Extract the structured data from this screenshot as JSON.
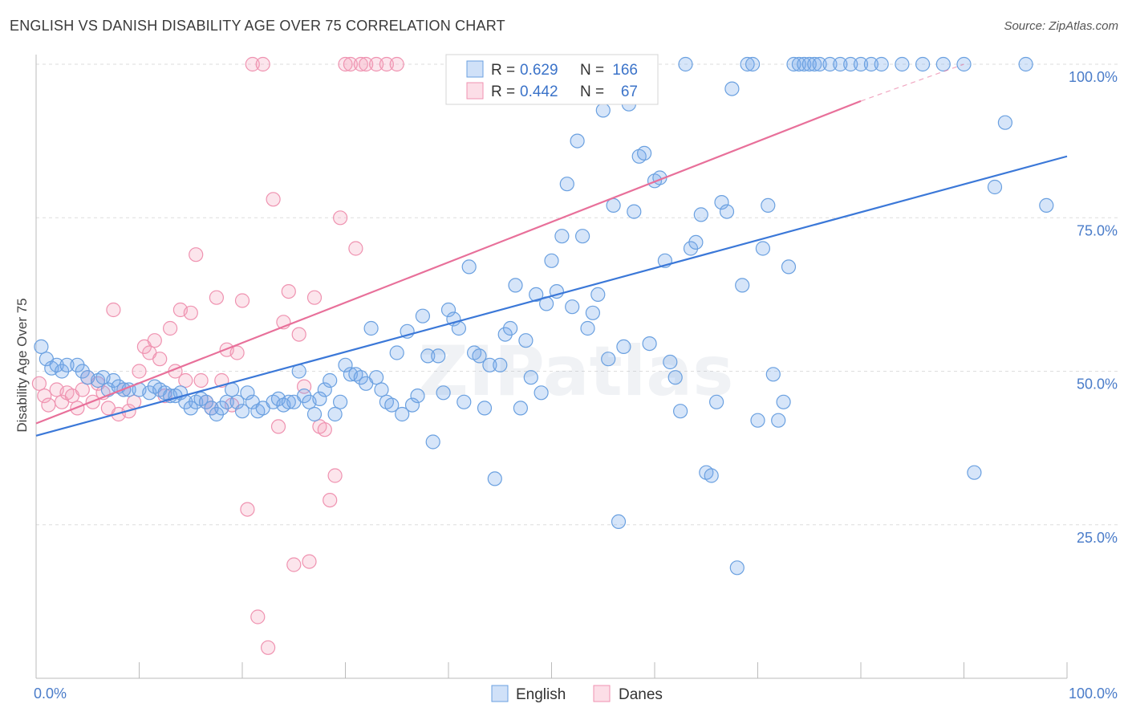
{
  "header": {
    "title": "ENGLISH VS DANISH DISABILITY AGE OVER 75 CORRELATION CHART",
    "source": "Source: ZipAtlas.com"
  },
  "watermark": "ZIPatlas",
  "chart_data": {
    "type": "scatter",
    "ylabel": "Disability Age Over 75",
    "xlim": [
      0,
      100
    ],
    "ylim": [
      0,
      100
    ],
    "x_tick_labels": [
      "0.0%",
      "100.0%"
    ],
    "y_ticks": [
      25,
      50,
      75,
      100
    ],
    "y_tick_labels": [
      "25.0%",
      "50.0%",
      "75.0%",
      "100.0%"
    ],
    "grid": true,
    "legend_top": {
      "rows": [
        {
          "r_label": "R =",
          "r": "0.629",
          "n_label": "N =",
          "n": "166",
          "color": "#6aa0e0"
        },
        {
          "r_label": "R =",
          "r": "0.442",
          "n_label": "N =",
          "n": "67",
          "color": "#ef92b0"
        }
      ]
    },
    "legend_bottom": [
      "English",
      "Danes"
    ],
    "series": [
      {
        "name": "English",
        "color": "#3b78d8",
        "trend": {
          "x": [
            0,
            100
          ],
          "y": [
            39.5,
            85.0
          ]
        },
        "points": [
          [
            0.5,
            54
          ],
          [
            1,
            52
          ],
          [
            1.5,
            50.5
          ],
          [
            2,
            51
          ],
          [
            2.5,
            50
          ],
          [
            3,
            51
          ],
          [
            4,
            51
          ],
          [
            4.5,
            50
          ],
          [
            5,
            49
          ],
          [
            6,
            48.5
          ],
          [
            6.5,
            49
          ],
          [
            7,
            47
          ],
          [
            7.5,
            48.5
          ],
          [
            8,
            47.5
          ],
          [
            8.5,
            47
          ],
          [
            9,
            47
          ],
          [
            10,
            47
          ],
          [
            11,
            46.5
          ],
          [
            11.5,
            47.5
          ],
          [
            12,
            47
          ],
          [
            12.5,
            46.5
          ],
          [
            13,
            46
          ],
          [
            13.5,
            46
          ],
          [
            14,
            46.5
          ],
          [
            14.5,
            45
          ],
          [
            15,
            44
          ],
          [
            15.5,
            45
          ],
          [
            16,
            45.5
          ],
          [
            16.5,
            45
          ],
          [
            17,
            44
          ],
          [
            17.5,
            43
          ],
          [
            18,
            44
          ],
          [
            18.5,
            45
          ],
          [
            19,
            47
          ],
          [
            19.5,
            45
          ],
          [
            20,
            43.5
          ],
          [
            20.5,
            46.5
          ],
          [
            21,
            45
          ],
          [
            21.5,
            43.5
          ],
          [
            22,
            44
          ],
          [
            23,
            45
          ],
          [
            23.5,
            45.5
          ],
          [
            24,
            44.5
          ],
          [
            24.5,
            45
          ],
          [
            25,
            45
          ],
          [
            25.5,
            50
          ],
          [
            26,
            46
          ],
          [
            26.5,
            45
          ],
          [
            27,
            43
          ],
          [
            27.5,
            45.5
          ],
          [
            28,
            47
          ],
          [
            28.5,
            48.5
          ],
          [
            29,
            43
          ],
          [
            29.5,
            45
          ],
          [
            30,
            51
          ],
          [
            30.5,
            49.5
          ],
          [
            31,
            49.5
          ],
          [
            31.5,
            49
          ],
          [
            32,
            48
          ],
          [
            32.5,
            57
          ],
          [
            33,
            49
          ],
          [
            33.5,
            47
          ],
          [
            34,
            45
          ],
          [
            34.5,
            44.5
          ],
          [
            35,
            53
          ],
          [
            35.5,
            43
          ],
          [
            36,
            56.5
          ],
          [
            36.5,
            44.5
          ],
          [
            37,
            46
          ],
          [
            37.5,
            59
          ],
          [
            38,
            52.5
          ],
          [
            38.5,
            38.5
          ],
          [
            39,
            52.5
          ],
          [
            39.5,
            46.5
          ],
          [
            40,
            60
          ],
          [
            40.5,
            58.5
          ],
          [
            41,
            57
          ],
          [
            41.5,
            45
          ],
          [
            42,
            67
          ],
          [
            42.5,
            53
          ],
          [
            43,
            52.5
          ],
          [
            43.5,
            44
          ],
          [
            44,
            51
          ],
          [
            44.5,
            32.5
          ],
          [
            45,
            51
          ],
          [
            45.5,
            56
          ],
          [
            46,
            57
          ],
          [
            46.5,
            64
          ],
          [
            47,
            44
          ],
          [
            47.5,
            55
          ],
          [
            48,
            49
          ],
          [
            48.5,
            62.5
          ],
          [
            49,
            46.5
          ],
          [
            49.5,
            61
          ],
          [
            50,
            68
          ],
          [
            50.5,
            63
          ],
          [
            51,
            72
          ],
          [
            51.5,
            80.5
          ],
          [
            52,
            60.5
          ],
          [
            52.5,
            87.5
          ],
          [
            53,
            72
          ],
          [
            53.5,
            57
          ],
          [
            54,
            59.5
          ],
          [
            54.5,
            62.5
          ],
          [
            55,
            92.5
          ],
          [
            55.5,
            52
          ],
          [
            56,
            77
          ],
          [
            56.5,
            25.5
          ],
          [
            57,
            54
          ],
          [
            57.5,
            93.5
          ],
          [
            58,
            76
          ],
          [
            58.5,
            85
          ],
          [
            59,
            85.5
          ],
          [
            59.5,
            54.5
          ],
          [
            60,
            81
          ],
          [
            60.5,
            81.5
          ],
          [
            61,
            68
          ],
          [
            61.5,
            51.5
          ],
          [
            62,
            49
          ],
          [
            62.5,
            43.5
          ],
          [
            63,
            100
          ],
          [
            63.5,
            70
          ],
          [
            64,
            71
          ],
          [
            64.5,
            75.5
          ],
          [
            65,
            33.5
          ],
          [
            65.5,
            33
          ],
          [
            66,
            45
          ],
          [
            66.5,
            77.5
          ],
          [
            67,
            76
          ],
          [
            67.5,
            96
          ],
          [
            68,
            18
          ],
          [
            68.5,
            64
          ],
          [
            69,
            100
          ],
          [
            69.5,
            100
          ],
          [
            70,
            42
          ],
          [
            70.5,
            70
          ],
          [
            71,
            77
          ],
          [
            71.5,
            49.5
          ],
          [
            72,
            42
          ],
          [
            72.5,
            45
          ],
          [
            73,
            67
          ],
          [
            73.5,
            100
          ],
          [
            74,
            100
          ],
          [
            74.5,
            100
          ],
          [
            75,
            100
          ],
          [
            75.5,
            100
          ],
          [
            76,
            100
          ],
          [
            77,
            100
          ],
          [
            78,
            100
          ],
          [
            79,
            100
          ],
          [
            80,
            100
          ],
          [
            81,
            100
          ],
          [
            82,
            100
          ],
          [
            84,
            100
          ],
          [
            86,
            100
          ],
          [
            88,
            100
          ],
          [
            90,
            100
          ],
          [
            91,
            33.5
          ],
          [
            93,
            80
          ],
          [
            94,
            90.5
          ],
          [
            96,
            100
          ],
          [
            98,
            77
          ]
        ]
      },
      {
        "name": "Danes",
        "color": "#e8709a",
        "trend": {
          "x": [
            0,
            80
          ],
          "y": [
            41.5,
            94.0
          ]
        },
        "trend_dashed_extension": {
          "x": [
            80,
            90
          ],
          "y": [
            94.0,
            100.0
          ]
        },
        "points": [
          [
            0.3,
            48
          ],
          [
            0.8,
            46
          ],
          [
            1.2,
            44.5
          ],
          [
            2,
            47
          ],
          [
            2.5,
            45
          ],
          [
            3,
            46.5
          ],
          [
            3.5,
            46
          ],
          [
            4,
            44
          ],
          [
            4.5,
            47
          ],
          [
            5,
            49
          ],
          [
            5.5,
            45
          ],
          [
            6,
            48
          ],
          [
            6.5,
            46.5
          ],
          [
            7,
            44
          ],
          [
            7.5,
            60
          ],
          [
            8,
            43
          ],
          [
            8.5,
            47
          ],
          [
            9,
            43.5
          ],
          [
            9.5,
            45
          ],
          [
            10,
            50
          ],
          [
            10.5,
            54
          ],
          [
            11,
            53
          ],
          [
            11.5,
            55
          ],
          [
            12,
            52
          ],
          [
            12.5,
            46
          ],
          [
            13,
            57
          ],
          [
            13.5,
            50
          ],
          [
            14,
            60
          ],
          [
            14.5,
            48.5
          ],
          [
            15,
            59.5
          ],
          [
            15.5,
            69
          ],
          [
            16,
            48.5
          ],
          [
            16.5,
            45
          ],
          [
            17,
            44
          ],
          [
            17.5,
            62
          ],
          [
            18,
            48.5
          ],
          [
            18.5,
            53.5
          ],
          [
            19,
            44.5
          ],
          [
            19.5,
            53
          ],
          [
            20,
            61.5
          ],
          [
            20.5,
            27.5
          ],
          [
            21,
            100
          ],
          [
            21.5,
            10
          ],
          [
            22,
            100
          ],
          [
            22.5,
            5
          ],
          [
            23,
            78
          ],
          [
            23.5,
            41
          ],
          [
            24,
            58
          ],
          [
            24.5,
            63
          ],
          [
            25,
            18.5
          ],
          [
            25.5,
            56
          ],
          [
            26,
            47.5
          ],
          [
            26.5,
            19
          ],
          [
            27,
            62
          ],
          [
            27.5,
            41
          ],
          [
            28,
            40.5
          ],
          [
            28.5,
            29
          ],
          [
            29,
            33
          ],
          [
            29.5,
            75
          ],
          [
            30,
            100
          ],
          [
            30.5,
            100
          ],
          [
            31,
            70
          ],
          [
            31.5,
            100
          ],
          [
            32,
            100
          ],
          [
            33,
            100
          ],
          [
            34,
            100
          ],
          [
            35,
            100
          ]
        ]
      }
    ]
  }
}
